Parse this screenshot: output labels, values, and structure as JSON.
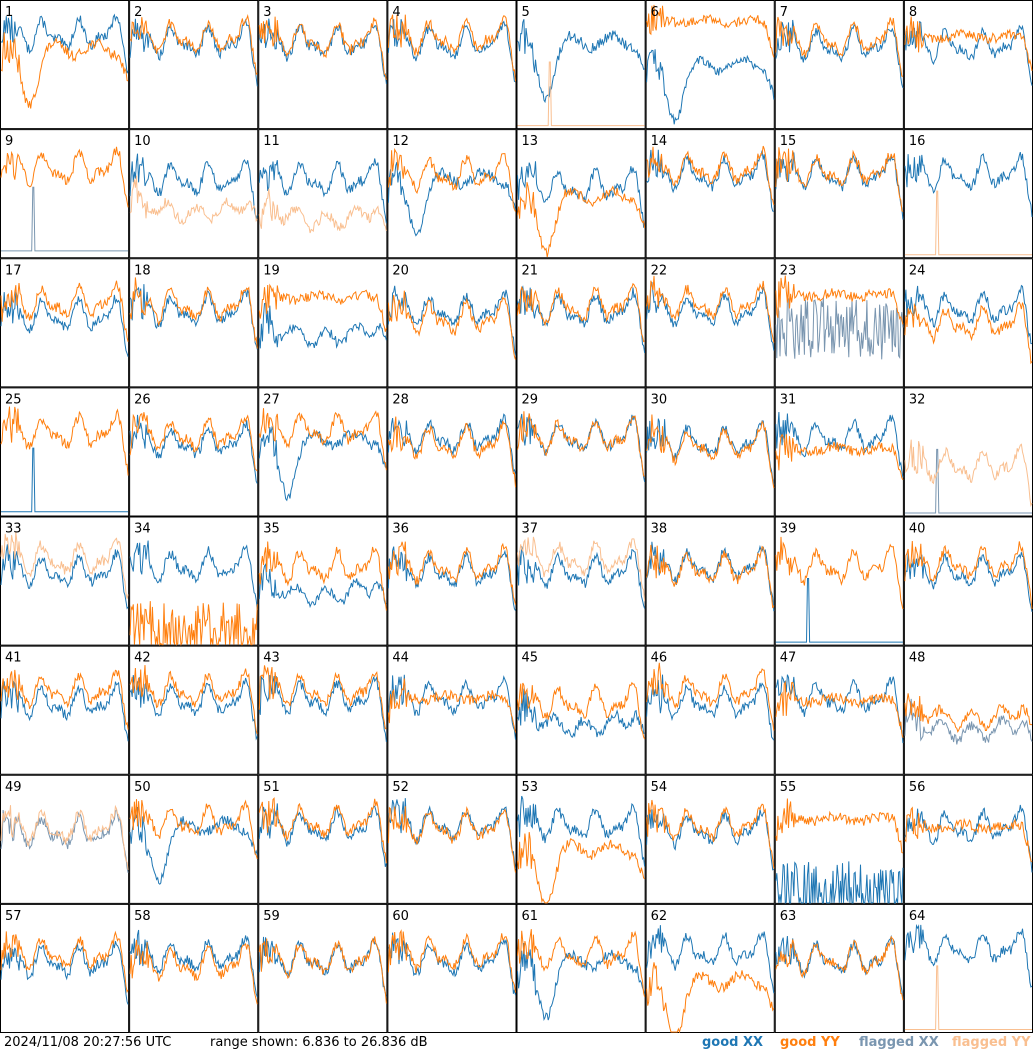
{
  "chart_data": {
    "type": "line",
    "layout": "small-multiples",
    "panel_count": 64,
    "grid": "8x8",
    "timestamp": "2024/11/08 20:27:56 UTC",
    "range_text": "range shown: 6.836 to 26.836 dB",
    "ylim": [
      6.836,
      26.836
    ],
    "ylabel_unit": "dB",
    "legend": [
      {
        "key": "gxx",
        "label": "good XX",
        "color": "#1f77b4"
      },
      {
        "key": "gyy",
        "label": "good YY",
        "color": "#ff7f0e"
      },
      {
        "key": "fxx",
        "label": "flagged XX",
        "color": "#7a96b0"
      },
      {
        "key": "fyy",
        "label": "flagged YY",
        "color": "#f9bf90"
      }
    ],
    "panels": [
      {
        "id": "1",
        "xx": {
          "s": "norm",
          "l": 0.78,
          "f": 0
        },
        "yy": {
          "s": "dip",
          "l": 0.62,
          "f": 0
        }
      },
      {
        "id": "2",
        "xx": {
          "s": "norm",
          "l": 0.72,
          "f": 0
        },
        "yy": {
          "s": "norm",
          "l": 0.76,
          "f": 0
        }
      },
      {
        "id": "3",
        "xx": {
          "s": "norm",
          "l": 0.72,
          "f": 0
        },
        "yy": {
          "s": "norm",
          "l": 0.74,
          "f": 0
        }
      },
      {
        "id": "4",
        "xx": {
          "s": "norm",
          "l": 0.72,
          "f": 0
        },
        "yy": {
          "s": "norm",
          "l": 0.76,
          "f": 0
        }
      },
      {
        "id": "5",
        "xx": {
          "s": "dip",
          "l": 0.68,
          "f": 0
        },
        "yy": {
          "s": "low",
          "l": 0.02,
          "f": 1
        }
      },
      {
        "id": "6",
        "xx": {
          "s": "dip",
          "l": 0.5,
          "f": 0
        },
        "yy": {
          "s": "flat",
          "l": 0.84,
          "f": 0
        }
      },
      {
        "id": "7",
        "xx": {
          "s": "norm",
          "l": 0.7,
          "f": 0
        },
        "yy": {
          "s": "norm",
          "l": 0.74,
          "f": 0
        }
      },
      {
        "id": "8",
        "xx": {
          "s": "norm",
          "l": 0.7,
          "f": 0
        },
        "yy": {
          "s": "flat",
          "l": 0.72,
          "f": 0
        }
      },
      {
        "id": "9",
        "xx": {
          "s": "low",
          "l": 0.05,
          "f": 1
        },
        "yy": {
          "s": "norm",
          "l": 0.74,
          "f": 0
        }
      },
      {
        "id": "10",
        "xx": {
          "s": "norm",
          "l": 0.66,
          "f": 0
        },
        "yy": {
          "s": "sag",
          "l": 0.48,
          "f": 1
        }
      },
      {
        "id": "11",
        "xx": {
          "s": "norm",
          "l": 0.66,
          "f": 0
        },
        "yy": {
          "s": "sag",
          "l": 0.42,
          "f": 1
        }
      },
      {
        "id": "12",
        "xx": {
          "s": "dip",
          "l": 0.62,
          "f": 0
        },
        "yy": {
          "s": "norm",
          "l": 0.7,
          "f": 0
        }
      },
      {
        "id": "13",
        "xx": {
          "s": "norm",
          "l": 0.6,
          "f": 0
        },
        "yy": {
          "s": "dip",
          "l": 0.48,
          "f": 0
        }
      },
      {
        "id": "14",
        "xx": {
          "s": "norm",
          "l": 0.7,
          "f": 0
        },
        "yy": {
          "s": "norm",
          "l": 0.74,
          "f": 0
        }
      },
      {
        "id": "15",
        "xx": {
          "s": "norm",
          "l": 0.7,
          "f": 0
        },
        "yy": {
          "s": "norm",
          "l": 0.72,
          "f": 0
        }
      },
      {
        "id": "16",
        "xx": {
          "s": "norm",
          "l": 0.7,
          "f": 0
        },
        "yy": {
          "s": "low",
          "l": 0.02,
          "f": 1
        }
      },
      {
        "id": "17",
        "xx": {
          "s": "norm",
          "l": 0.6,
          "f": 0
        },
        "yy": {
          "s": "norm",
          "l": 0.7,
          "f": 0
        }
      },
      {
        "id": "18",
        "xx": {
          "s": "norm",
          "l": 0.64,
          "f": 0
        },
        "yy": {
          "s": "norm",
          "l": 0.68,
          "f": 0
        }
      },
      {
        "id": "19",
        "xx": {
          "s": "sag",
          "l": 0.52,
          "f": 0
        },
        "yy": {
          "s": "flat",
          "l": 0.7,
          "f": 0
        }
      },
      {
        "id": "20",
        "xx": {
          "s": "norm",
          "l": 0.64,
          "f": 0
        },
        "yy": {
          "s": "norm",
          "l": 0.58,
          "f": 0
        }
      },
      {
        "id": "21",
        "xx": {
          "s": "norm",
          "l": 0.64,
          "f": 0
        },
        "yy": {
          "s": "norm",
          "l": 0.68,
          "f": 0
        }
      },
      {
        "id": "22",
        "xx": {
          "s": "norm",
          "l": 0.64,
          "f": 0
        },
        "yy": {
          "s": "norm",
          "l": 0.7,
          "f": 0
        }
      },
      {
        "id": "23",
        "xx": {
          "s": "spikes",
          "l": 0.45,
          "f": 1
        },
        "yy": {
          "s": "flat",
          "l": 0.72,
          "f": 0
        }
      },
      {
        "id": "24",
        "xx": {
          "s": "norm",
          "l": 0.66,
          "f": 0
        },
        "yy": {
          "s": "norm",
          "l": 0.54,
          "f": 0
        }
      },
      {
        "id": "25",
        "xx": {
          "s": "low",
          "l": 0.03,
          "f": 0
        },
        "yy": {
          "s": "norm",
          "l": 0.7,
          "f": 0
        }
      },
      {
        "id": "26",
        "xx": {
          "s": "norm",
          "l": 0.62,
          "f": 0
        },
        "yy": {
          "s": "norm",
          "l": 0.68,
          "f": 0
        }
      },
      {
        "id": "27",
        "xx": {
          "s": "dip",
          "l": 0.6,
          "f": 0
        },
        "yy": {
          "s": "norm",
          "l": 0.72,
          "f": 0
        }
      },
      {
        "id": "28",
        "xx": {
          "s": "norm",
          "l": 0.66,
          "f": 0
        },
        "yy": {
          "s": "norm",
          "l": 0.62,
          "f": 0
        }
      },
      {
        "id": "29",
        "xx": {
          "s": "norm",
          "l": 0.66,
          "f": 0
        },
        "yy": {
          "s": "norm",
          "l": 0.66,
          "f": 0
        }
      },
      {
        "id": "30",
        "xx": {
          "s": "norm",
          "l": 0.62,
          "f": 0
        },
        "yy": {
          "s": "norm",
          "l": 0.6,
          "f": 0
        }
      },
      {
        "id": "31",
        "xx": {
          "s": "norm",
          "l": 0.66,
          "f": 0
        },
        "yy": {
          "s": "flat",
          "l": 0.52,
          "f": 0
        }
      },
      {
        "id": "32",
        "xx": {
          "s": "low",
          "l": 0.02,
          "f": 1
        },
        "yy": {
          "s": "norm",
          "l": 0.44,
          "f": 1
        }
      },
      {
        "id": "33",
        "xx": {
          "s": "norm",
          "l": 0.62,
          "f": 0
        },
        "yy": {
          "s": "norm",
          "l": 0.72,
          "f": 1
        }
      },
      {
        "id": "34",
        "xx": {
          "s": "norm",
          "l": 0.66,
          "f": 0
        },
        "yy": {
          "s": "spikes",
          "l": 0.1,
          "f": 0
        }
      },
      {
        "id": "35",
        "xx": {
          "s": "sag",
          "l": 0.52,
          "f": 0
        },
        "yy": {
          "s": "norm",
          "l": 0.66,
          "f": 0
        }
      },
      {
        "id": "36",
        "xx": {
          "s": "norm",
          "l": 0.62,
          "f": 0
        },
        "yy": {
          "s": "norm",
          "l": 0.66,
          "f": 0
        }
      },
      {
        "id": "37",
        "xx": {
          "s": "norm",
          "l": 0.62,
          "f": 0
        },
        "yy": {
          "s": "norm",
          "l": 0.72,
          "f": 1
        }
      },
      {
        "id": "38",
        "xx": {
          "s": "norm",
          "l": 0.66,
          "f": 0
        },
        "yy": {
          "s": "norm",
          "l": 0.64,
          "f": 0
        }
      },
      {
        "id": "39",
        "xx": {
          "s": "low",
          "l": 0.02,
          "f": 0
        },
        "yy": {
          "s": "norm",
          "l": 0.66,
          "f": 0
        }
      },
      {
        "id": "40",
        "xx": {
          "s": "norm",
          "l": 0.62,
          "f": 0
        },
        "yy": {
          "s": "norm",
          "l": 0.68,
          "f": 0
        }
      },
      {
        "id": "41",
        "xx": {
          "s": "norm",
          "l": 0.6,
          "f": 0
        },
        "yy": {
          "s": "norm",
          "l": 0.7,
          "f": 0
        }
      },
      {
        "id": "42",
        "xx": {
          "s": "norm",
          "l": 0.62,
          "f": 0
        },
        "yy": {
          "s": "norm",
          "l": 0.7,
          "f": 0
        }
      },
      {
        "id": "43",
        "xx": {
          "s": "norm",
          "l": 0.64,
          "f": 0
        },
        "yy": {
          "s": "norm",
          "l": 0.7,
          "f": 0
        }
      },
      {
        "id": "44",
        "xx": {
          "s": "norm",
          "l": 0.64,
          "f": 0
        },
        "yy": {
          "s": "flat",
          "l": 0.6,
          "f": 0
        }
      },
      {
        "id": "45",
        "xx": {
          "s": "sag",
          "l": 0.5,
          "f": 0
        },
        "yy": {
          "s": "norm",
          "l": 0.6,
          "f": 0
        }
      },
      {
        "id": "46",
        "xx": {
          "s": "norm",
          "l": 0.6,
          "f": 0
        },
        "yy": {
          "s": "norm",
          "l": 0.7,
          "f": 0
        }
      },
      {
        "id": "47",
        "xx": {
          "s": "norm",
          "l": 0.64,
          "f": 0
        },
        "yy": {
          "s": "flat",
          "l": 0.58,
          "f": 0
        }
      },
      {
        "id": "48",
        "xx": {
          "s": "sag",
          "l": 0.46,
          "f": 1
        },
        "yy": {
          "s": "sag",
          "l": 0.56,
          "f": 0
        }
      },
      {
        "id": "49",
        "xx": {
          "s": "norm",
          "l": 0.6,
          "f": 1
        },
        "yy": {
          "s": "norm",
          "l": 0.64,
          "f": 1
        }
      },
      {
        "id": "50",
        "xx": {
          "s": "dip",
          "l": 0.6,
          "f": 0
        },
        "yy": {
          "s": "norm",
          "l": 0.68,
          "f": 0
        }
      },
      {
        "id": "51",
        "xx": {
          "s": "norm",
          "l": 0.64,
          "f": 0
        },
        "yy": {
          "s": "norm",
          "l": 0.68,
          "f": 0
        }
      },
      {
        "id": "52",
        "xx": {
          "s": "norm",
          "l": 0.66,
          "f": 0
        },
        "yy": {
          "s": "norm",
          "l": 0.64,
          "f": 0
        }
      },
      {
        "id": "53",
        "xx": {
          "s": "norm",
          "l": 0.66,
          "f": 0
        },
        "yy": {
          "s": "dip",
          "l": 0.42,
          "f": 0
        }
      },
      {
        "id": "54",
        "xx": {
          "s": "norm",
          "l": 0.62,
          "f": 0
        },
        "yy": {
          "s": "norm",
          "l": 0.66,
          "f": 0
        }
      },
      {
        "id": "55",
        "xx": {
          "s": "spikes",
          "l": 0.08,
          "f": 0
        },
        "yy": {
          "s": "flat",
          "l": 0.66,
          "f": 0
        }
      },
      {
        "id": "56",
        "xx": {
          "s": "norm",
          "l": 0.64,
          "f": 0
        },
        "yy": {
          "s": "flat",
          "l": 0.6,
          "f": 0
        }
      },
      {
        "id": "57",
        "xx": {
          "s": "norm",
          "l": 0.6,
          "f": 0
        },
        "yy": {
          "s": "norm",
          "l": 0.66,
          "f": 0
        }
      },
      {
        "id": "58",
        "xx": {
          "s": "norm",
          "l": 0.64,
          "f": 0
        },
        "yy": {
          "s": "norm",
          "l": 0.58,
          "f": 0
        }
      },
      {
        "id": "59",
        "xx": {
          "s": "norm",
          "l": 0.62,
          "f": 0
        },
        "yy": {
          "s": "norm",
          "l": 0.62,
          "f": 0
        }
      },
      {
        "id": "60",
        "xx": {
          "s": "norm",
          "l": 0.62,
          "f": 0
        },
        "yy": {
          "s": "norm",
          "l": 0.66,
          "f": 0
        }
      },
      {
        "id": "61",
        "xx": {
          "s": "dip",
          "l": 0.56,
          "f": 0
        },
        "yy": {
          "s": "norm",
          "l": 0.66,
          "f": 0
        }
      },
      {
        "id": "62",
        "xx": {
          "s": "norm",
          "l": 0.68,
          "f": 0
        },
        "yy": {
          "s": "dip",
          "l": 0.4,
          "f": 0
        }
      },
      {
        "id": "63",
        "xx": {
          "s": "norm",
          "l": 0.62,
          "f": 0
        },
        "yy": {
          "s": "norm",
          "l": 0.62,
          "f": 0
        }
      },
      {
        "id": "64",
        "xx": {
          "s": "norm",
          "l": 0.7,
          "f": 0
        },
        "yy": {
          "s": "low",
          "l": 0.02,
          "f": 1
        }
      }
    ]
  }
}
